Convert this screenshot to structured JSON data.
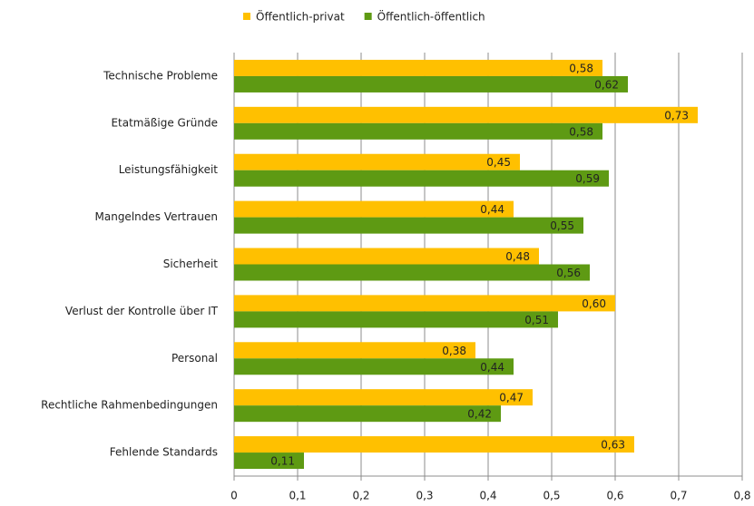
{
  "chart_data": {
    "type": "hbar",
    "categories": [
      "Technische Probleme",
      "Etatmäßige Gründe",
      "Leistungsfähigkeit",
      "Mangelndes Vertrauen",
      "Sicherheit",
      "Verlust der Kontrolle über IT",
      "Personal",
      "Rechtliche Rahmenbedingungen",
      "Fehlende Standards"
    ],
    "series": [
      {
        "name": "Öffentlich-privat",
        "color": "#ffc000",
        "values": [
          0.58,
          0.73,
          0.45,
          0.44,
          0.48,
          0.6,
          0.38,
          0.47,
          0.63
        ],
        "value_labels": [
          "0,58",
          "0,73",
          "0,45",
          "0,44",
          "0,48",
          "0,60",
          "0,38",
          "0,47",
          "0,63"
        ]
      },
      {
        "name": "Öffentlich-öffentlich",
        "color": "#5e9a13",
        "values": [
          0.62,
          0.58,
          0.59,
          0.55,
          0.56,
          0.51,
          0.44,
          0.42,
          0.11
        ],
        "value_labels": [
          "0,62",
          "0,58",
          "0,59",
          "0,55",
          "0,56",
          "0,51",
          "0,44",
          "0,42",
          "0,11"
        ]
      }
    ],
    "xlim": [
      0,
      0.8
    ],
    "xticks": [
      0,
      {
        "value": 0.1,
        "label": "0,1"
      },
      {
        "value": 0.2,
        "label": "0,2"
      },
      {
        "value": 0.3,
        "label": "0,3"
      },
      {
        "value": 0.4,
        "label": "0,4"
      },
      {
        "value": 0.5,
        "label": "0,5"
      },
      {
        "value": 0.6,
        "label": "0,6"
      },
      {
        "value": 0.7,
        "label": "0,7"
      },
      {
        "value": 0.8,
        "label": "0,8"
      }
    ],
    "grid": true
  }
}
